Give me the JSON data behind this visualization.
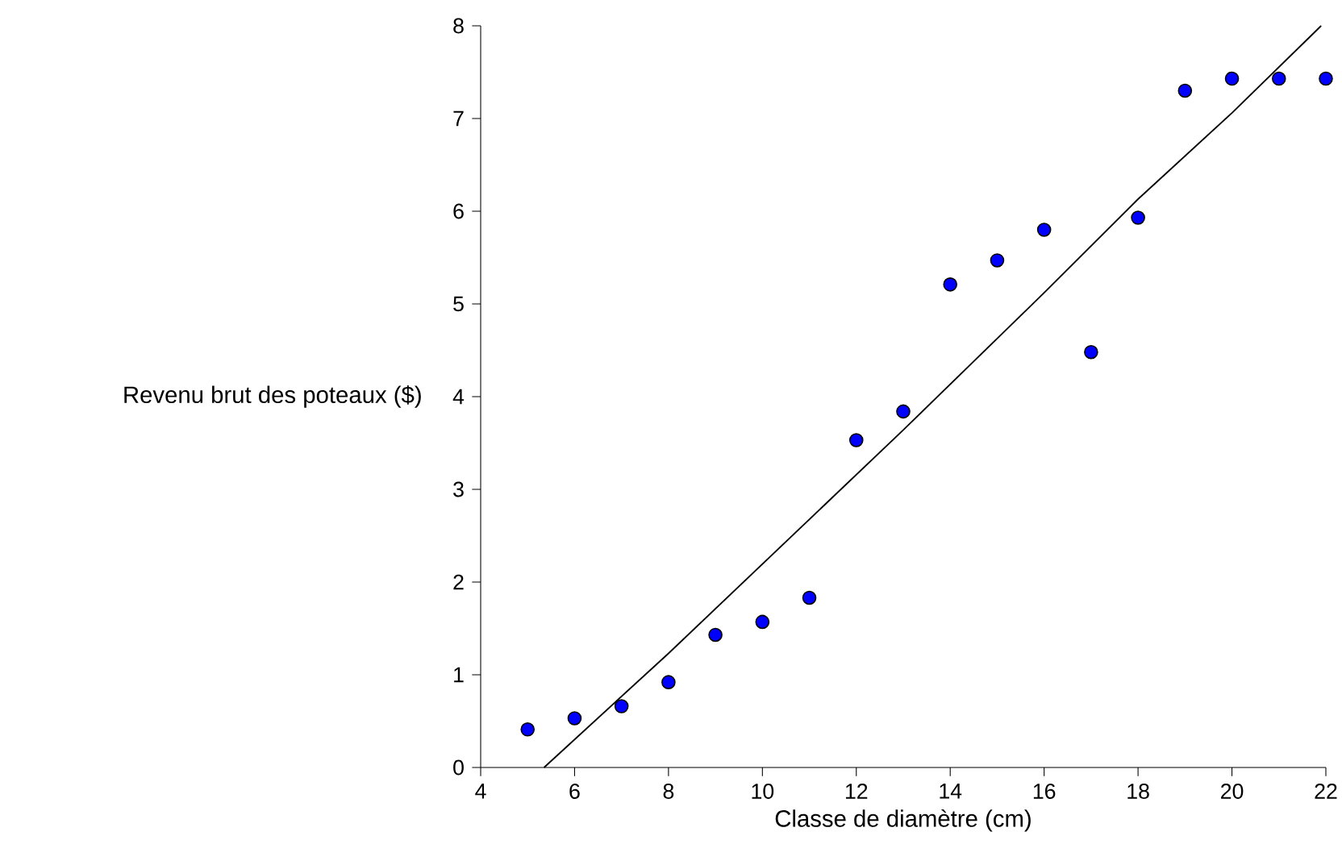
{
  "chart_data": {
    "type": "scatter",
    "xlabel": "Classe de diamètre (cm)",
    "ylabel": "Revenu brut des poteaux ($)",
    "xlim": [
      4,
      22
    ],
    "ylim": [
      0,
      8
    ],
    "xticks": [
      4,
      6,
      8,
      10,
      12,
      14,
      16,
      18,
      20,
      22
    ],
    "yticks": [
      0,
      1,
      2,
      3,
      4,
      5,
      6,
      7,
      8
    ],
    "grid": false,
    "series": [
      {
        "color": "#0000ff",
        "marker": "circle",
        "x": [
          5,
          6,
          7,
          8,
          9,
          10,
          11,
          12,
          13,
          14,
          15,
          16,
          17,
          18,
          19,
          20,
          21,
          22
        ],
        "values": [
          0.41,
          0.53,
          0.66,
          0.92,
          1.43,
          1.57,
          1.83,
          3.53,
          3.84,
          5.21,
          5.47,
          5.8,
          4.48,
          5.93,
          7.3,
          7.43,
          7.43,
          7.43
        ]
      },
      {
        "type": "line",
        "color": "#000000",
        "x": [
          5.35,
          8,
          13,
          16,
          18,
          20,
          21.9
        ],
        "values": [
          0,
          1.23,
          3.64,
          5.12,
          6.13,
          7.06,
          8
        ]
      }
    ]
  }
}
